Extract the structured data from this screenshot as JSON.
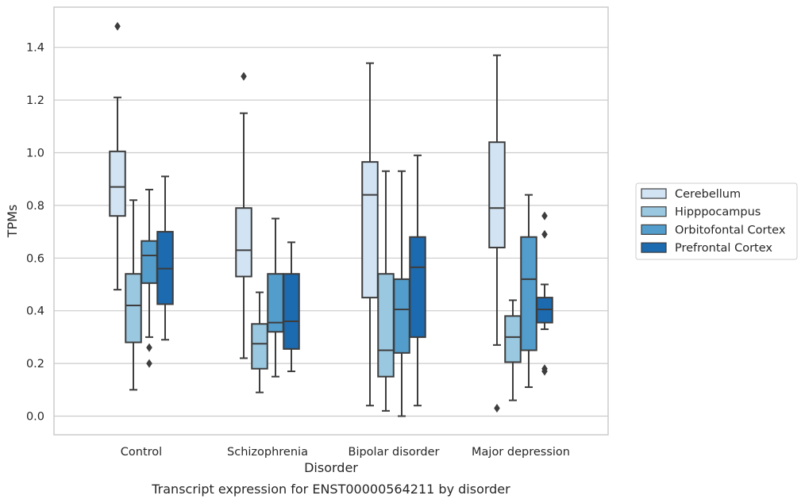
{
  "chart_data": {
    "type": "box",
    "title": "",
    "caption": "Transcript expression for ENST00000564211 by disorder",
    "xlabel": "Disorder",
    "ylabel": "TPMs",
    "ylim": [
      -0.07,
      1.55
    ],
    "yticks": [
      0.0,
      0.2,
      0.4,
      0.6,
      0.8,
      1.0,
      1.2,
      1.4
    ],
    "ytick_labels": [
      "0.0",
      "0.2",
      "0.4",
      "0.6",
      "0.8",
      "1.0",
      "1.2",
      "1.4"
    ],
    "grid": "horizontal",
    "legend_position": "right",
    "categories": [
      "Control",
      "Schizophrenia",
      "Bipolar disorder",
      "Major depression"
    ],
    "series": [
      {
        "name": "Cerebellum",
        "color": "#d2e3f3",
        "boxes": [
          {
            "whislo": 0.48,
            "q1": 0.76,
            "med": 0.87,
            "q3": 1.005,
            "whishi": 1.21,
            "fliers": [
              1.48
            ]
          },
          {
            "whislo": 0.22,
            "q1": 0.53,
            "med": 0.63,
            "q3": 0.79,
            "whishi": 1.15,
            "fliers": [
              1.29
            ]
          },
          {
            "whislo": 0.04,
            "q1": 0.45,
            "med": 0.84,
            "q3": 0.965,
            "whishi": 1.34,
            "fliers": []
          },
          {
            "whislo": 0.27,
            "q1": 0.64,
            "med": 0.79,
            "q3": 1.04,
            "whishi": 1.37,
            "fliers": [
              0.03
            ]
          }
        ]
      },
      {
        "name": "Hipppocampus",
        "color": "#9ac8e0",
        "boxes": [
          {
            "whislo": 0.1,
            "q1": 0.28,
            "med": 0.42,
            "q3": 0.54,
            "whishi": 0.82,
            "fliers": []
          },
          {
            "whislo": 0.09,
            "q1": 0.18,
            "med": 0.275,
            "q3": 0.35,
            "whishi": 0.47,
            "fliers": []
          },
          {
            "whislo": 0.02,
            "q1": 0.15,
            "med": 0.25,
            "q3": 0.54,
            "whishi": 0.93,
            "fliers": []
          },
          {
            "whislo": 0.06,
            "q1": 0.205,
            "med": 0.3,
            "q3": 0.38,
            "whishi": 0.44,
            "fliers": []
          }
        ]
      },
      {
        "name": "Orbitofontal Cortex",
        "color": "#529dcc",
        "boxes": [
          {
            "whislo": 0.3,
            "q1": 0.505,
            "med": 0.61,
            "q3": 0.665,
            "whishi": 0.86,
            "fliers": [
              0.26,
              0.2
            ]
          },
          {
            "whislo": 0.15,
            "q1": 0.32,
            "med": 0.355,
            "q3": 0.54,
            "whishi": 0.75,
            "fliers": []
          },
          {
            "whislo": 0.0,
            "q1": 0.24,
            "med": 0.405,
            "q3": 0.52,
            "whishi": 0.93,
            "fliers": []
          },
          {
            "whislo": 0.11,
            "q1": 0.25,
            "med": 0.52,
            "q3": 0.68,
            "whishi": 0.84,
            "fliers": []
          }
        ]
      },
      {
        "name": "Prefrontal Cortex",
        "color": "#1c6aaf",
        "boxes": [
          {
            "whislo": 0.29,
            "q1": 0.425,
            "med": 0.56,
            "q3": 0.7,
            "whishi": 0.91,
            "fliers": []
          },
          {
            "whislo": 0.17,
            "q1": 0.255,
            "med": 0.36,
            "q3": 0.54,
            "whishi": 0.66,
            "fliers": []
          },
          {
            "whislo": 0.04,
            "q1": 0.3,
            "med": 0.565,
            "q3": 0.68,
            "whishi": 0.99,
            "fliers": []
          },
          {
            "whislo": 0.33,
            "q1": 0.355,
            "med": 0.405,
            "q3": 0.45,
            "whishi": 0.5,
            "fliers": [
              0.76,
              0.69,
              0.18,
              0.17
            ]
          }
        ]
      }
    ]
  }
}
